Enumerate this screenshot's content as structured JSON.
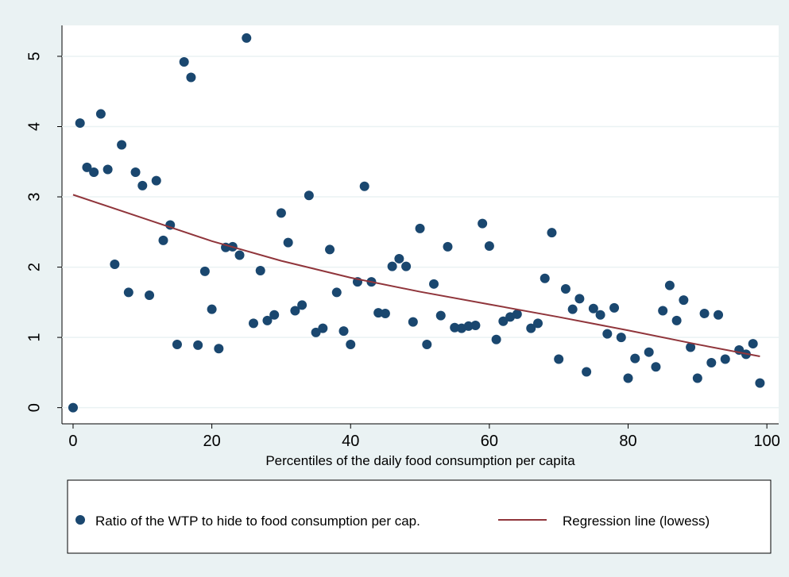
{
  "chart_data": {
    "type": "scatter",
    "x_label": "Percentiles of the daily food consumption per capita",
    "xlim": [
      -1.6,
      101.7
    ],
    "ylim": [
      -0.23,
      5.44
    ],
    "xticks": [
      0,
      20,
      40,
      60,
      80,
      100
    ],
    "yticks": [
      0,
      1,
      2,
      3,
      4,
      5
    ],
    "grid": true,
    "legend": "bottom",
    "series": [
      {
        "name": "Ratio of the WTP to hide to food consumption per cap.",
        "type": "scatter",
        "color": "#1a476f",
        "x": [
          0,
          1,
          2,
          3,
          4,
          5,
          6,
          7,
          8,
          9,
          10,
          11,
          12,
          13,
          14,
          15,
          16,
          17,
          18,
          19,
          20,
          21,
          22,
          23,
          24,
          25,
          26,
          27,
          28,
          29,
          30,
          31,
          32,
          33,
          34,
          35,
          36,
          37,
          38,
          39,
          40,
          41,
          42,
          43,
          44,
          45,
          46,
          47,
          48,
          49,
          50,
          51,
          52,
          53,
          54,
          55,
          56,
          57,
          58,
          59,
          60,
          61,
          62,
          63,
          64,
          66,
          67,
          68,
          69,
          70,
          71,
          72,
          73,
          74,
          75,
          76,
          77,
          78,
          79,
          80,
          81,
          83,
          84,
          85,
          86,
          87,
          88,
          89,
          90,
          91,
          92,
          93,
          94,
          96,
          97,
          98,
          99
        ],
        "values": [
          0,
          4.05,
          3.42,
          3.35,
          4.18,
          3.39,
          2.04,
          3.74,
          1.64,
          3.35,
          3.16,
          1.6,
          3.23,
          2.38,
          2.6,
          0.9,
          4.92,
          4.7,
          0.89,
          1.94,
          1.4,
          0.84,
          2.28,
          2.29,
          2.17,
          5.26,
          1.2,
          1.95,
          1.24,
          1.32,
          2.77,
          2.35,
          1.38,
          1.46,
          3.02,
          1.07,
          1.13,
          2.25,
          1.64,
          1.09,
          0.9,
          1.79,
          3.15,
          1.79,
          1.35,
          1.34,
          2.01,
          2.12,
          2.01,
          1.22,
          2.55,
          0.9,
          1.76,
          1.31,
          2.29,
          1.14,
          1.13,
          1.16,
          1.17,
          2.62,
          2.3,
          0.97,
          1.23,
          1.29,
          1.33,
          1.13,
          1.2,
          1.84,
          2.49,
          0.69,
          1.69,
          1.4,
          1.55,
          0.51,
          1.41,
          1.32,
          1.05,
          1.42,
          1,
          0.42,
          0.7,
          0.79,
          0.58,
          1.38,
          1.74,
          1.24,
          1.53,
          0.86,
          0.42,
          1.34,
          0.64,
          1.32,
          0.69,
          0.82,
          0.76,
          0.91,
          0.35
        ]
      },
      {
        "name": "Regression line (lowess)",
        "type": "line",
        "color": "#90353b",
        "x": [
          0,
          10,
          20,
          30,
          40,
          50,
          60,
          70,
          80,
          90,
          99
        ],
        "values": [
          3.03,
          2.7,
          2.37,
          2.09,
          1.85,
          1.65,
          1.47,
          1.29,
          1.1,
          0.9,
          0.73
        ]
      }
    ]
  }
}
